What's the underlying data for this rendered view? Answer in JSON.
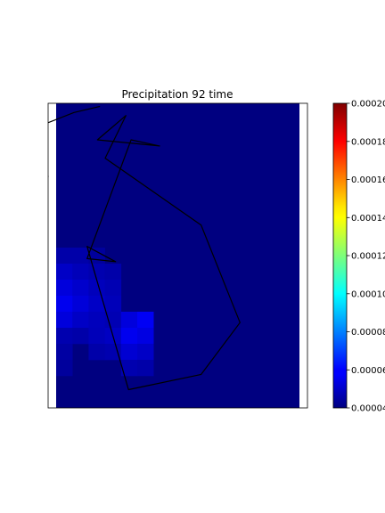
{
  "chart_data": {
    "type": "heatmap",
    "title": "Precipitation 92 time",
    "xlabel": "",
    "ylabel": "",
    "colormap": "jet",
    "colorbar": {
      "vmin": 4e-05,
      "vmax": 0.0002,
      "ticks": [
        {
          "value": 4e-05,
          "label": "0.00004"
        },
        {
          "value": 6e-05,
          "label": "0.00006"
        },
        {
          "value": 8e-05,
          "label": "0.00008"
        },
        {
          "value": 0.0001,
          "label": "0.00010"
        },
        {
          "value": 0.00012,
          "label": "0.00012"
        },
        {
          "value": 0.00014,
          "label": "0.00014"
        },
        {
          "value": 0.00016,
          "label": "0.00016"
        },
        {
          "value": 0.00018,
          "label": "0.00018"
        },
        {
          "value": 0.0002,
          "label": "0.00020"
        }
      ]
    },
    "grid": {
      "rows": 19,
      "cols": 15,
      "background_value": 4e-05,
      "cells": [
        {
          "row": 9,
          "col": 0,
          "value": 4.65e-05
        },
        {
          "row": 9,
          "col": 1,
          "value": 4.65e-05
        },
        {
          "row": 9,
          "col": 2,
          "value": 4.45e-05
        },
        {
          "row": 10,
          "col": 0,
          "value": 5.1e-05
        },
        {
          "row": 10,
          "col": 1,
          "value": 4.9e-05
        },
        {
          "row": 10,
          "col": 2,
          "value": 4.75e-05
        },
        {
          "row": 10,
          "col": 3,
          "value": 4.65e-05
        },
        {
          "row": 11,
          "col": 0,
          "value": 5.45e-05
        },
        {
          "row": 11,
          "col": 1,
          "value": 5.2e-05
        },
        {
          "row": 11,
          "col": 2,
          "value": 4.95e-05
        },
        {
          "row": 11,
          "col": 3,
          "value": 4.8e-05
        },
        {
          "row": 12,
          "col": 0,
          "value": 5.75e-05
        },
        {
          "row": 12,
          "col": 1,
          "value": 5.4e-05
        },
        {
          "row": 12,
          "col": 2,
          "value": 5.1e-05
        },
        {
          "row": 12,
          "col": 3,
          "value": 4.9e-05
        },
        {
          "row": 13,
          "col": 0,
          "value": 5.45e-05
        },
        {
          "row": 13,
          "col": 1,
          "value": 5.1e-05
        },
        {
          "row": 13,
          "col": 2,
          "value": 4.95e-05
        },
        {
          "row": 13,
          "col": 3,
          "value": 4.8e-05
        },
        {
          "row": 13,
          "col": 4,
          "value": 5.45e-05
        },
        {
          "row": 13,
          "col": 5,
          "value": 5.85e-05
        },
        {
          "row": 14,
          "col": 0,
          "value": 4.75e-05
        },
        {
          "row": 14,
          "col": 1,
          "value": 4.65e-05
        },
        {
          "row": 14,
          "col": 2,
          "value": 4.9e-05
        },
        {
          "row": 14,
          "col": 3,
          "value": 5.05e-05
        },
        {
          "row": 14,
          "col": 4,
          "value": 5.75e-05
        },
        {
          "row": 14,
          "col": 5,
          "value": 5.55e-05
        },
        {
          "row": 15,
          "col": 0,
          "value": 4.55e-05
        },
        {
          "row": 15,
          "col": 2,
          "value": 4.65e-05
        },
        {
          "row": 15,
          "col": 3,
          "value": 4.75e-05
        },
        {
          "row": 15,
          "col": 4,
          "value": 5.3e-05
        },
        {
          "row": 15,
          "col": 5,
          "value": 5.1e-05
        },
        {
          "row": 16,
          "col": 0,
          "value": 4.45e-05
        },
        {
          "row": 16,
          "col": 4,
          "value": 4.75e-05
        },
        {
          "row": 16,
          "col": 5,
          "value": 4.65e-05
        }
      ]
    },
    "outline_polygon": [
      [
        0.32,
        0.12
      ],
      [
        0.43,
        0.14
      ],
      [
        0.19,
        0.12
      ],
      [
        0.3,
        0.04
      ],
      [
        0.22,
        0.18
      ],
      [
        0.59,
        0.4
      ],
      [
        0.74,
        0.72
      ],
      [
        0.59,
        0.89
      ],
      [
        0.31,
        0.94
      ],
      [
        0.15,
        0.47
      ],
      [
        0.26,
        0.52
      ],
      [
        0.15,
        0.51
      ]
    ],
    "outline_top_left": [
      [
        -0.1,
        0.19
      ],
      [
        -0.05,
        0.08
      ],
      [
        0.1,
        0.03
      ],
      [
        0.2,
        0.01
      ]
    ],
    "outline_left_notch": [
      [
        -0.1,
        0.2
      ],
      [
        0.0,
        0.24
      ],
      [
        -0.1,
        0.25
      ]
    ]
  }
}
